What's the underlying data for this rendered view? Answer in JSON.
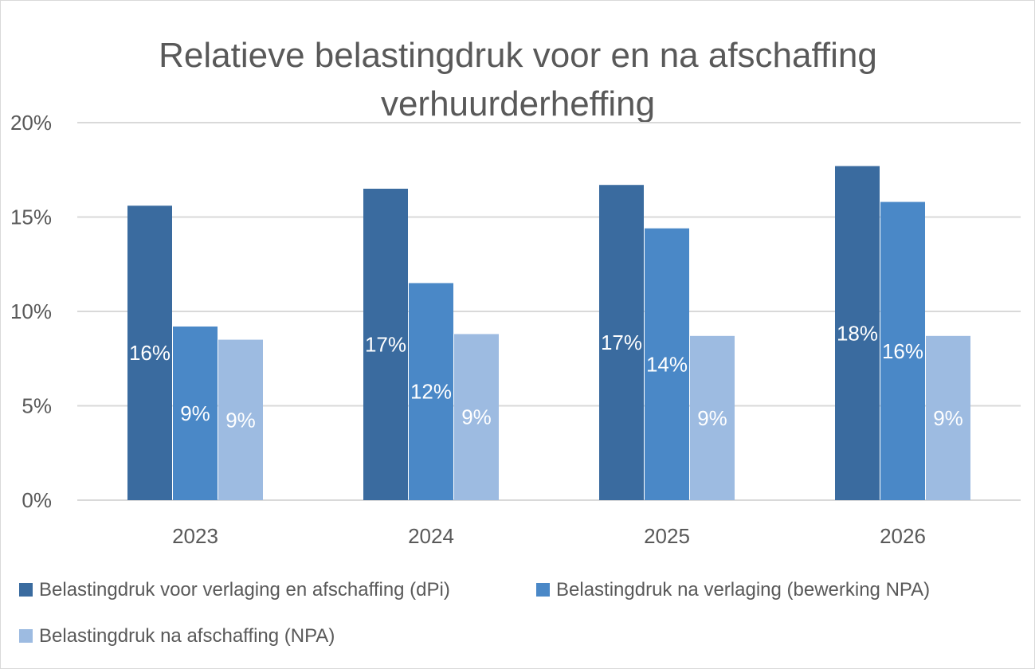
{
  "chart_data": {
    "type": "bar",
    "title": "Relatieve belastingdruk voor en na afschaffing verhuurderheffing",
    "title_lines": [
      "Relatieve belastingdruk voor en na afschaffing",
      "verhuurderheffing"
    ],
    "xlabel": "",
    "ylabel": "",
    "categories": [
      "2023",
      "2024",
      "2025",
      "2026"
    ],
    "ylim": [
      0,
      20
    ],
    "yticks": [
      "0%",
      "5%",
      "10%",
      "15%",
      "20%"
    ],
    "grid": true,
    "legend_position": "bottom",
    "series": [
      {
        "name": "Belastingdruk voor verlaging en afschaffing (dPi)",
        "color": "#3A6B9F",
        "values": [
          15.6,
          16.5,
          16.7,
          17.7
        ],
        "labels": [
          "16%",
          "17%",
          "17%",
          "18%"
        ]
      },
      {
        "name": "Belastingdruk na verlaging (bewerking NPA)",
        "color": "#4A88C7",
        "values": [
          9.2,
          11.5,
          14.4,
          15.8
        ],
        "labels": [
          "9%",
          "12%",
          "14%",
          "16%"
        ]
      },
      {
        "name": "Belastingdruk na afschaffing (NPA)",
        "color": "#9DBBE1",
        "values": [
          8.5,
          8.8,
          8.7,
          8.7
        ],
        "labels": [
          "9%",
          "9%",
          "9%",
          "9%"
        ]
      }
    ]
  }
}
